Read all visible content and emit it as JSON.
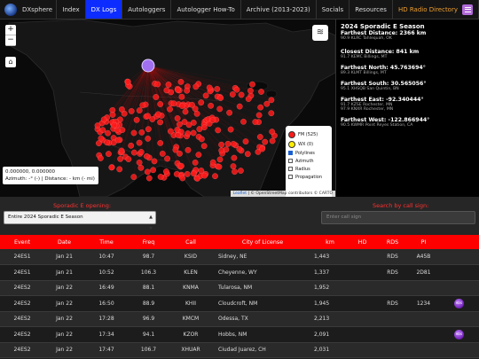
{
  "nav": {
    "brand": "DXsphere",
    "items": [
      {
        "label": "Index",
        "active": false
      },
      {
        "label": "DX Logs",
        "active": true
      },
      {
        "label": "Autologgers",
        "active": false
      },
      {
        "label": "Autologger How-To",
        "active": false
      },
      {
        "label": "Archive (2013-2023)",
        "active": false
      },
      {
        "label": "Socials",
        "active": false
      },
      {
        "label": "Resources",
        "active": false
      }
    ],
    "hd_label": "HD Radio Directory"
  },
  "map": {
    "zoom_in": "+",
    "zoom_out": "−",
    "coords_line1": "0.000000, 0.000000",
    "coords_line2": "Azimuth: -° (-) | Distance: - km (- mi)",
    "legend": {
      "fm_label": "FM (525)",
      "wx_label": "WX (0)",
      "fm_color": "#ff1a1a",
      "wx_color": "#ffee00",
      "checks": [
        {
          "label": "Polylines",
          "checked": true
        },
        {
          "label": "Azimuth",
          "checked": false
        },
        {
          "label": "Radius",
          "checked": false
        },
        {
          "label": "Propagation",
          "checked": false
        }
      ]
    },
    "attribution_leaflet": "Leaflet",
    "attribution_rest": " | © OpenStreetMap contributors © CARTO"
  },
  "stats": {
    "title": "2024 Sporadic E Season",
    "items": [
      {
        "label": "Farthest Distance: 2366 km",
        "sub": "90.9 KLRC Tahlequah, OK"
      },
      {
        "label": "Closest Distance: 841 km",
        "sub": "91.7 KEMC Billings, MT"
      },
      {
        "label": "Farthest North: 45.763694°",
        "sub": "89.3 KLMT Billings, MT"
      },
      {
        "label": "Farthest South: 30.565056°",
        "sub": "95.1 XHSQB San Quintin, BN"
      },
      {
        "label": "Farthest East: -92.340444°",
        "sub": "91.7 KZSE Rochester, MN\n97.9 KNXR Rochester, MN"
      },
      {
        "label": "Farthest West: -122.866944°",
        "sub": "90.5 KWMR Point Reyes Station, CA"
      }
    ]
  },
  "filters": {
    "opening_label": "Sporadic E opening:",
    "opening_value": "Entire 2024 Sporadic E Season",
    "search_label": "Search by call sign:",
    "search_placeholder": "Enter call sign"
  },
  "table": {
    "headers": [
      "Event",
      "Date",
      "Time",
      "Freq",
      "Call",
      "City of License",
      "km",
      "HD",
      "RDS",
      "PI",
      ""
    ],
    "rows": [
      {
        "event": "24ES1",
        "date": "Jan 21",
        "time": "10:47",
        "freq": "98.7",
        "call": "KSID",
        "city": "Sidney, NE",
        "km": "1,443",
        "hd": "",
        "rds": "RDS",
        "pi": "A45B",
        "badge": false
      },
      {
        "event": "24ES1",
        "date": "Jan 21",
        "time": "10:52",
        "freq": "106.3",
        "call": "KLEN",
        "city": "Cheyenne, WY",
        "km": "1,337",
        "hd": "",
        "rds": "RDS",
        "pi": "2D81",
        "badge": false
      },
      {
        "event": "24ES2",
        "date": "Jan 22",
        "time": "16:49",
        "freq": "88.1",
        "call": "KNMA",
        "city": "Tularosa, NM",
        "km": "1,952",
        "hd": "",
        "rds": "",
        "pi": "",
        "badge": false
      },
      {
        "event": "24ES2",
        "date": "Jan 22",
        "time": "16:50",
        "freq": "88.9",
        "call": "KHII",
        "city": "Cloudcroft, NM",
        "km": "1,945",
        "hd": "",
        "rds": "RDS",
        "pi": "1234",
        "badge": true
      },
      {
        "event": "24ES2",
        "date": "Jan 22",
        "time": "17:28",
        "freq": "96.9",
        "call": "KMCM",
        "city": "Odessa, TX",
        "km": "2,213",
        "hd": "",
        "rds": "",
        "pi": "",
        "badge": false
      },
      {
        "event": "24ES2",
        "date": "Jan 22",
        "time": "17:34",
        "freq": "94.1",
        "call": "KZOR",
        "city": "Hobbs, NM",
        "km": "2,091",
        "hd": "",
        "rds": "",
        "pi": "",
        "badge": true
      },
      {
        "event": "24ES2",
        "date": "Jan 22",
        "time": "17:47",
        "freq": "106.7",
        "call": "XHUAR",
        "city": "Ciudad Juarez, CH",
        "km": "2,031",
        "hd": "",
        "rds": "",
        "pi": "",
        "badge": false
      }
    ],
    "badge_text": "RDS"
  }
}
